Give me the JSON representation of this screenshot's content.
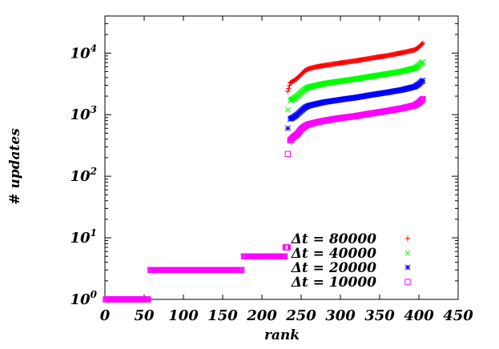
{
  "chart_data": {
    "type": "scatter",
    "title": "",
    "xlabel": "rank",
    "ylabel": "# updates",
    "xlim": [
      0,
      450
    ],
    "ylim": [
      1,
      40000
    ],
    "yscale": "log",
    "grid": false,
    "legend_position": "bottom-right",
    "x_ticks": [
      "0",
      "50",
      "100",
      "150",
      "200",
      "250",
      "300",
      "350",
      "400",
      "450"
    ],
    "y_ticks": [
      {
        "base": "10",
        "exp": "0",
        "value": 1
      },
      {
        "base": "10",
        "exp": "1",
        "value": 10
      },
      {
        "base": "10",
        "exp": "2",
        "value": 100
      },
      {
        "base": "10",
        "exp": "3",
        "value": 1000
      },
      {
        "base": "10",
        "exp": "4",
        "value": 10000
      }
    ],
    "series": [
      {
        "name": "Δt = 80000",
        "color": "#ff0000",
        "marker": "plus",
        "x": [
          233,
          236,
          240,
          245,
          250,
          255,
          260,
          270,
          280,
          300,
          320,
          340,
          360,
          380,
          395,
          400,
          405
        ],
        "y": [
          2400,
          3300,
          3500,
          3900,
          4500,
          5200,
          5600,
          6000,
          6300,
          6900,
          7500,
          8300,
          9100,
          10200,
          11300,
          12500,
          14500
        ]
      },
      {
        "name": "Δt = 40000",
        "color": "#00ff00",
        "marker": "cross",
        "x": [
          233,
          236,
          240,
          245,
          250,
          255,
          260,
          270,
          280,
          300,
          320,
          340,
          360,
          380,
          395,
          400,
          405
        ],
        "y": [
          1200,
          1700,
          1800,
          2000,
          2300,
          2600,
          2800,
          3000,
          3200,
          3500,
          3800,
          4200,
          4600,
          5100,
          5700,
          6300,
          7200
        ]
      },
      {
        "name": "Δt = 20000",
        "color": "#0000ff",
        "marker": "star",
        "x": [
          233,
          236,
          240,
          245,
          250,
          255,
          260,
          270,
          280,
          300,
          320,
          340,
          360,
          380,
          395,
          400,
          405
        ],
        "y": [
          600,
          850,
          900,
          1000,
          1150,
          1300,
          1400,
          1500,
          1600,
          1750,
          1900,
          2100,
          2300,
          2550,
          2850,
          3150,
          3600
        ]
      },
      {
        "name": "Δt = 10000",
        "color": "#ff00ff",
        "marker": "square",
        "x": [
          1,
          15,
          30,
          45,
          55,
          58,
          80,
          100,
          130,
          150,
          174,
          177,
          190,
          205,
          220,
          229,
          230,
          233,
          233,
          236,
          240,
          245,
          250,
          255,
          260,
          270,
          280,
          300,
          320,
          340,
          360,
          380,
          395,
          400,
          405
        ],
        "y": [
          1,
          1,
          1,
          1,
          1,
          3,
          3,
          3,
          3,
          3,
          3,
          5,
          5,
          5,
          5,
          5,
          7,
          7,
          230,
          380,
          430,
          480,
          580,
          650,
          700,
          750,
          800,
          880,
          950,
          1050,
          1150,
          1280,
          1420,
          1560,
          1800
        ]
      }
    ]
  }
}
